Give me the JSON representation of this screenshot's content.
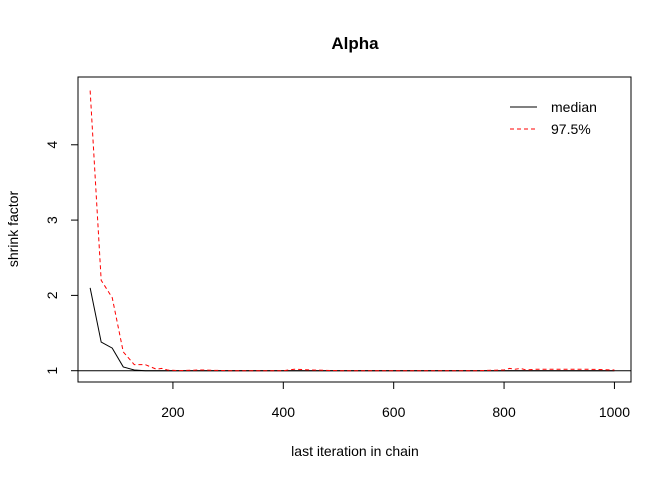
{
  "chart_data": {
    "type": "line",
    "title": "Alpha",
    "xlabel": "last iteration in chain",
    "ylabel": "shrink factor",
    "xlim": [
      28,
      1030
    ],
    "ylim": [
      0.85,
      4.9
    ],
    "xticks": [
      200,
      400,
      600,
      800,
      1000
    ],
    "xtick_labels": [
      "200",
      "400",
      "600",
      "800",
      "1000"
    ],
    "yticks": [
      1,
      2,
      3,
      4
    ],
    "ytick_labels": [
      "1",
      "2",
      "3",
      "4"
    ],
    "reference_line": 1,
    "legend": {
      "position": "top-right"
    },
    "colors": {
      "median": "#000000",
      "upper": "#ff0000"
    },
    "series": [
      {
        "name": "median",
        "style": "solid",
        "color": "#000000",
        "x": [
          50,
          70,
          90,
          110,
          130,
          150,
          170,
          190,
          210,
          250,
          300,
          350,
          400,
          420,
          450,
          500,
          550,
          600,
          650,
          700,
          750,
          800,
          810,
          820,
          840,
          860,
          900,
          950,
          1000
        ],
        "y": [
          2.1,
          1.38,
          1.3,
          1.05,
          1.01,
          1.0,
          1.0,
          1.0,
          1.0,
          1.0,
          1.0,
          1.0,
          1.0,
          1.0,
          1.0,
          1.0,
          1.0,
          1.0,
          1.0,
          1.0,
          1.0,
          1.0,
          1.0,
          1.0,
          1.0,
          1.0,
          1.0,
          1.0,
          1.0
        ]
      },
      {
        "name": "97.5%",
        "style": "dashed",
        "color": "#ff0000",
        "x": [
          50,
          70,
          90,
          110,
          130,
          150,
          170,
          180,
          190,
          210,
          250,
          300,
          350,
          400,
          420,
          450,
          500,
          550,
          600,
          650,
          700,
          750,
          800,
          810,
          820,
          830,
          840,
          860,
          900,
          950,
          1000
        ],
        "y": [
          4.72,
          2.2,
          1.97,
          1.25,
          1.08,
          1.08,
          1.02,
          1.03,
          1.01,
          1.0,
          1.01,
          1.0,
          1.0,
          1.0,
          1.02,
          1.01,
          1.0,
          1.0,
          1.0,
          1.0,
          1.0,
          1.0,
          1.01,
          1.03,
          1.02,
          1.03,
          1.01,
          1.02,
          1.02,
          1.02,
          1.01
        ]
      }
    ]
  }
}
